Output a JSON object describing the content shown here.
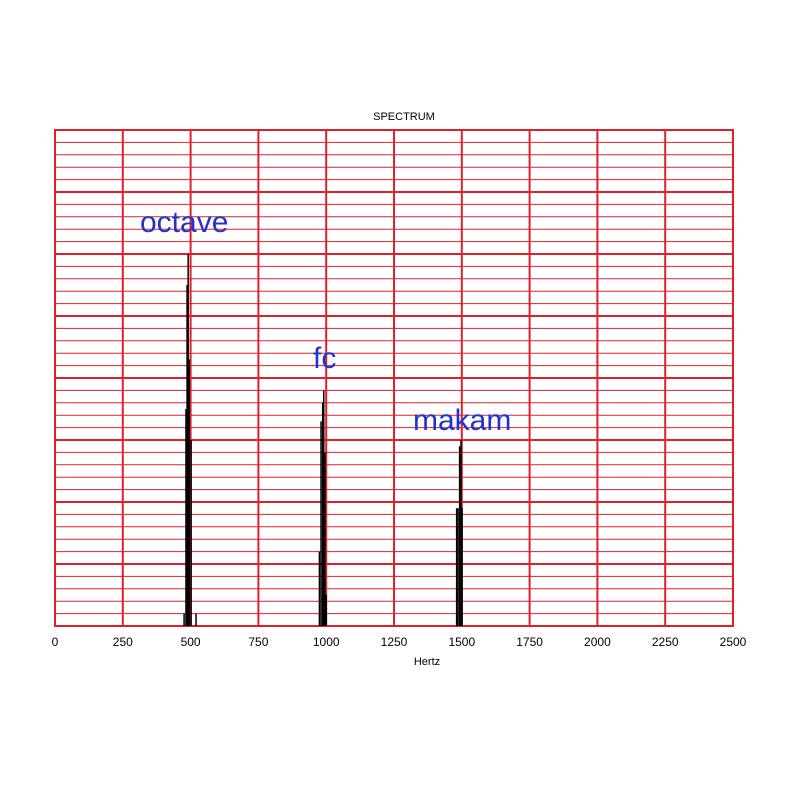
{
  "chart_data": {
    "type": "stem",
    "title": "SPECTRUM",
    "x_label": "Hertz",
    "x": [
      476,
      483,
      487,
      491,
      495,
      502,
      520,
      975,
      981,
      987,
      991,
      995,
      1000,
      1481,
      1486,
      1492,
      1497,
      1501
    ],
    "values": [
      0.2,
      3.5,
      5.5,
      6.0,
      4.3,
      3.0,
      0.2,
      1.2,
      3.3,
      3.6,
      3.8,
      2.8,
      0.5,
      1.9,
      1.9,
      2.9,
      3.0,
      1.9
    ],
    "color": "#000000",
    "grid_color": "#e0202a",
    "xlim": [
      0,
      2500
    ],
    "xticks": [
      0,
      250,
      500,
      750,
      1000,
      1250,
      1500,
      1750,
      2000,
      2250,
      2500
    ],
    "ylim": [
      0,
      8
    ],
    "grid": true,
    "annotations": [
      {
        "text": "octave",
        "color": "#2233cc"
      },
      {
        "text": "fc",
        "color": "#2233cc"
      },
      {
        "text": "makam",
        "color": "#2233cc"
      }
    ]
  }
}
